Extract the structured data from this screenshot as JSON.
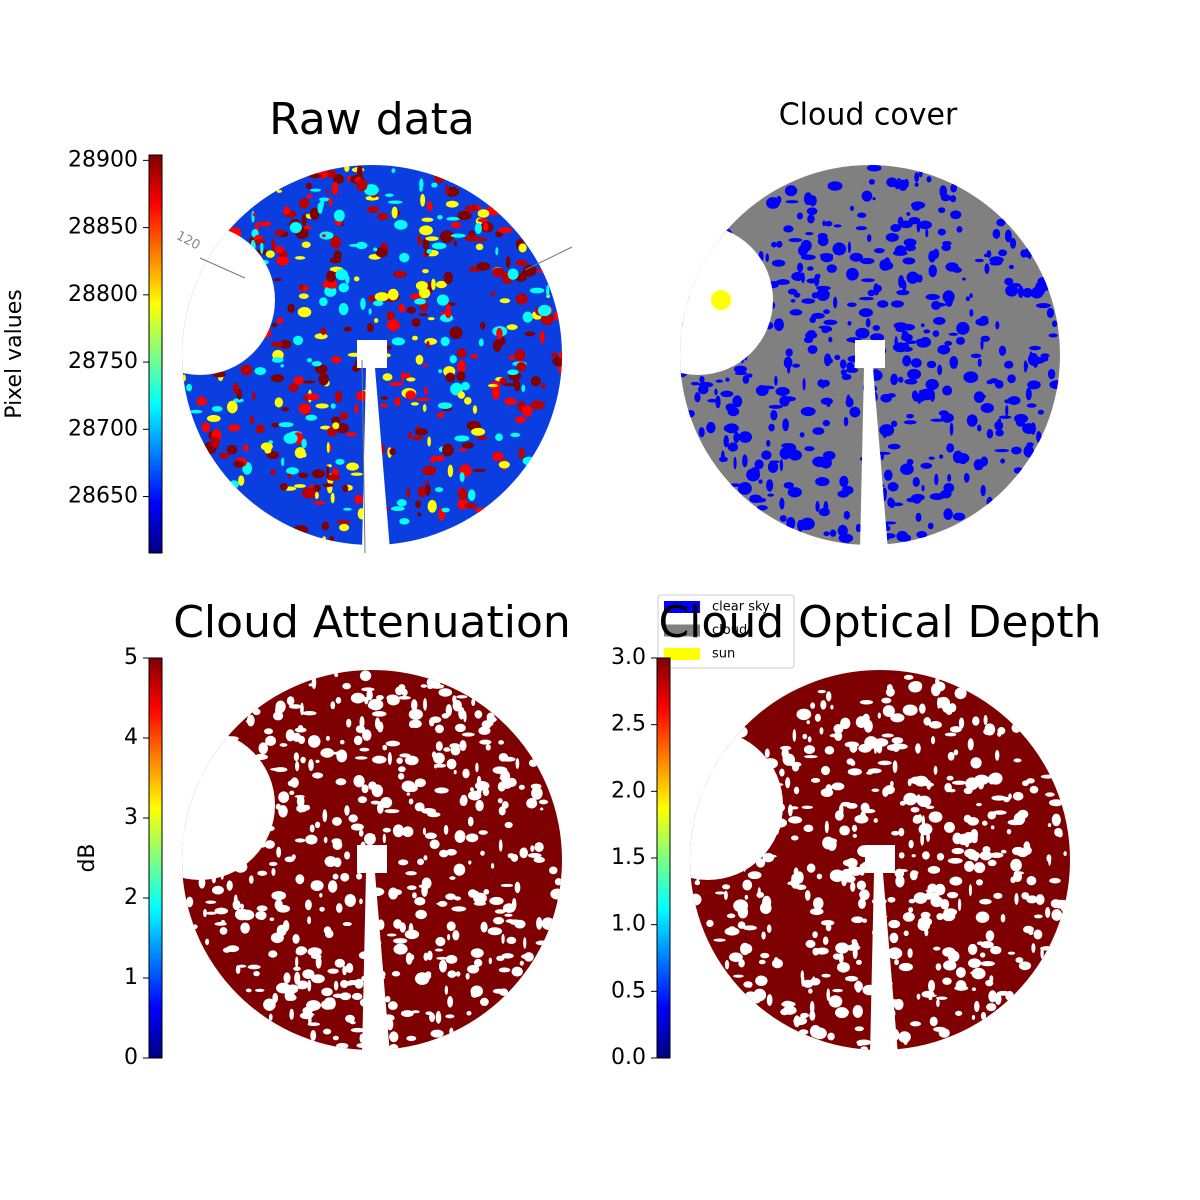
{
  "chart_data": [
    {
      "type": "image",
      "title": "Raw data",
      "colormap": "jet",
      "colorbar_label": "Pixel values",
      "clim": [
        28608,
        28904
      ],
      "cticks": [
        28650,
        28700,
        28750,
        28800,
        28850,
        28900
      ],
      "annotations": [
        "120"
      ]
    },
    {
      "type": "image",
      "title": "Cloud cover",
      "legend": [
        {
          "name": "clear sky",
          "color": "#0000ff"
        },
        {
          "name": "cloud",
          "color": "#808080"
        },
        {
          "name": "sun",
          "color": "#ffff00"
        }
      ]
    },
    {
      "type": "image",
      "title": "Cloud Attenuation",
      "colormap": "jet",
      "colorbar_label": "dB",
      "color": "#7f0000",
      "clim": [
        0,
        5
      ],
      "cticks": [
        0,
        1,
        2,
        3,
        4,
        5
      ]
    },
    {
      "type": "image",
      "title": "Cloud Optical Depth",
      "colormap": "jet",
      "color": "#7f0000",
      "clim": [
        0,
        3
      ],
      "cticks": [
        {
          "value": 0,
          "label": "0.0"
        },
        0.5,
        {
          "value": 1,
          "label": "1.0"
        },
        1.5,
        {
          "value": 2,
          "label": "2.0"
        },
        2.5,
        {
          "value": 3,
          "label": "3.0"
        }
      ]
    }
  ]
}
